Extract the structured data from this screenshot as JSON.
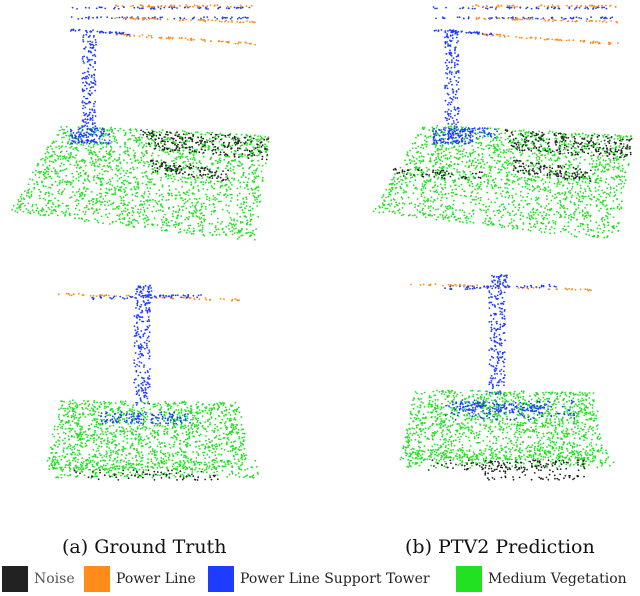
{
  "panels": [
    {
      "caption": "(a) Ground Truth"
    },
    {
      "caption": "(b) PTV2 Prediction"
    }
  ],
  "legend": [
    {
      "label": "Noise",
      "color": "#222222"
    },
    {
      "label": "Power Line",
      "color": "#ff8c1a"
    },
    {
      "label": "Power Line Support Tower",
      "color": "#1e3cff"
    },
    {
      "label": "Medium Vegetation",
      "color": "#22e022"
    }
  ]
}
